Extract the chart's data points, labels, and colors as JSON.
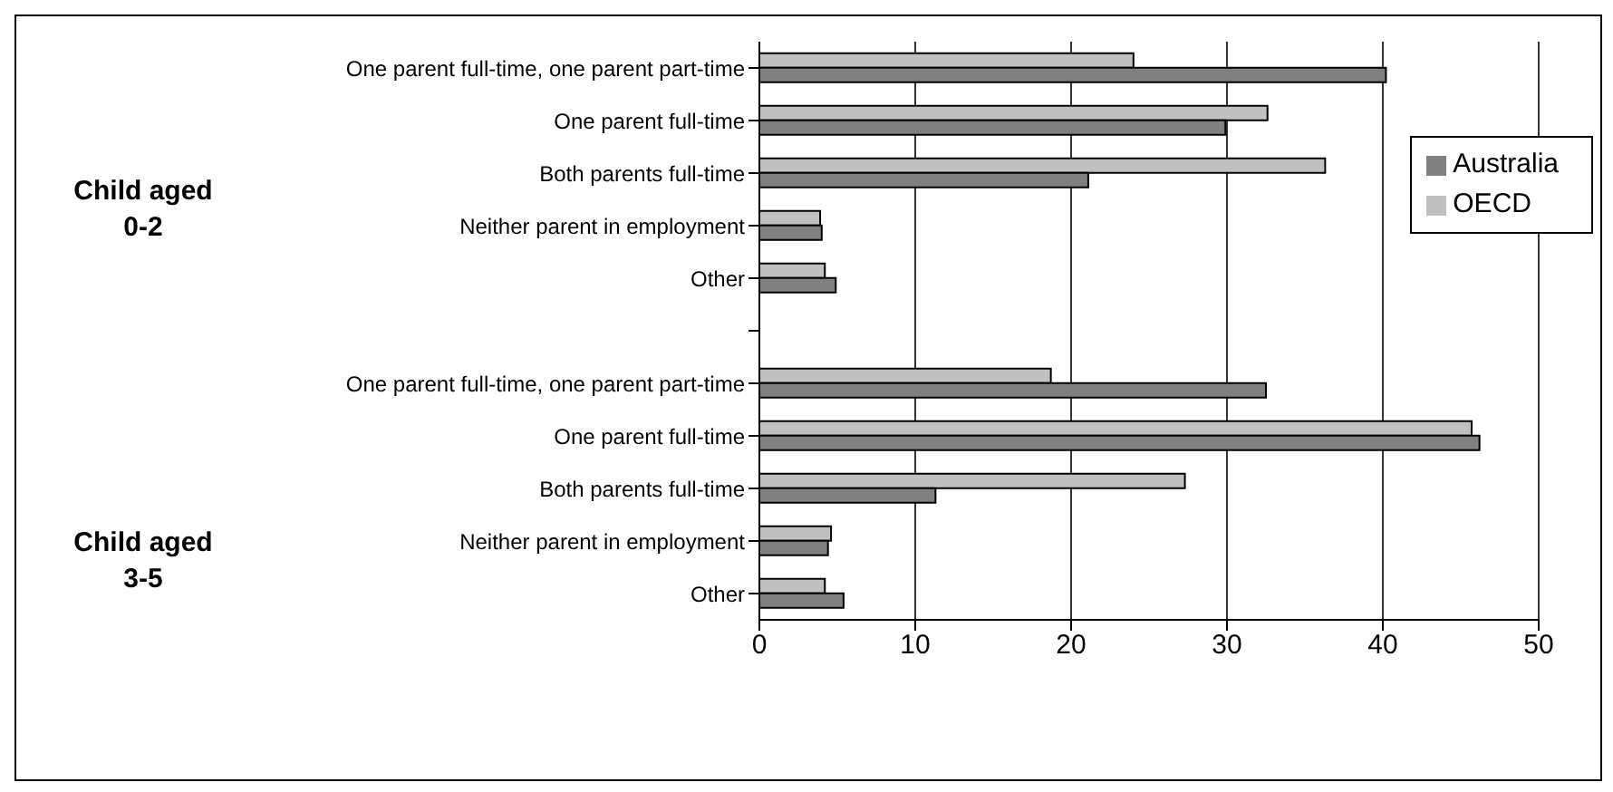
{
  "chart_data": {
    "type": "bar",
    "orientation": "horizontal",
    "categories": [
      "One parent full-time, one parent part-time",
      "One parent full-time",
      "Both parents full-time",
      "Neither parent in employment",
      "Other",
      null,
      "One parent full-time, one parent part-time",
      "One parent full-time",
      "Both parents full-time",
      "Neither parent in employment",
      "Other"
    ],
    "series": [
      {
        "name": "OECD",
        "color": "#c0c0c0",
        "values": [
          24.0,
          32.6,
          36.3,
          3.9,
          4.2,
          null,
          18.7,
          45.7,
          27.3,
          4.6,
          4.2
        ]
      },
      {
        "name": "Australia",
        "color": "#808080",
        "values": [
          40.2,
          29.9,
          21.1,
          4.0,
          4.9,
          null,
          32.5,
          46.2,
          11.3,
          4.4,
          5.4
        ]
      }
    ],
    "xlim": [
      0,
      50
    ],
    "xticks": [
      0,
      10,
      20,
      30,
      40,
      50
    ],
    "grid": "x",
    "legend": "right",
    "annotations": [
      "Child aged\n0-2",
      "Child aged\n3-5"
    ]
  }
}
